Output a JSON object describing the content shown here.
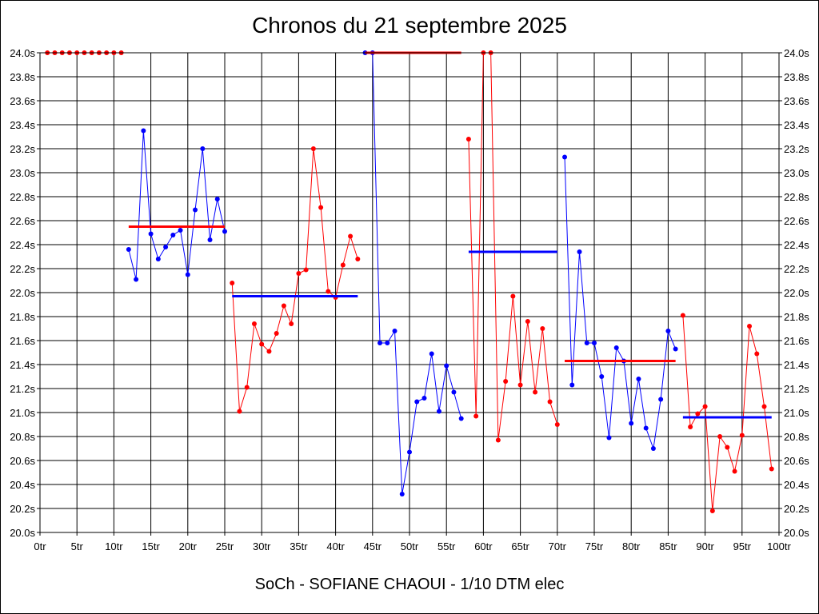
{
  "title": "Chronos du 21 septembre 2025",
  "footer": "SoCh - SOFIANE CHAOUI - 1/10 DTM elec",
  "colors": {
    "blue": "#0000ff",
    "red": "#ff0000",
    "grid": "#000000"
  },
  "chart_data": {
    "type": "line",
    "title": "Chronos du 21 septembre 2025",
    "xlabel": "",
    "ylabel": "",
    "xlim": [
      0,
      100
    ],
    "ylim": [
      20.0,
      24.0
    ],
    "grid": true,
    "legend": "none",
    "x_ticks": [
      "0tr",
      "5tr",
      "10tr",
      "15tr",
      "20tr",
      "25tr",
      "30tr",
      "35tr",
      "40tr",
      "45tr",
      "50tr",
      "55tr",
      "60tr",
      "65tr",
      "70tr",
      "75tr",
      "80tr",
      "85tr",
      "90tr",
      "95tr",
      "100tr"
    ],
    "y_ticks": [
      "20.0s",
      "20.2s",
      "20.4s",
      "20.6s",
      "20.8s",
      "21.0s",
      "21.2s",
      "21.4s",
      "21.6s",
      "21.8s",
      "22.0s",
      "22.2s",
      "22.4s",
      "22.6s",
      "22.8s",
      "23.0s",
      "23.2s",
      "23.4s",
      "23.6s",
      "23.8s",
      "24.0s"
    ],
    "series": [
      {
        "color": "#ff0000",
        "x": [
          1,
          2,
          3,
          4,
          5,
          6,
          7,
          8,
          9,
          10,
          11
        ],
        "y": [
          24.0,
          24.0,
          24.0,
          24.0,
          24.0,
          24.0,
          24.0,
          24.0,
          24.0,
          24.0,
          24.0
        ],
        "mean": null
      },
      {
        "color": "#0000ff",
        "x": [
          12,
          13,
          14,
          15,
          16,
          17,
          18,
          19,
          20,
          21,
          22,
          23,
          24,
          25
        ],
        "y": [
          22.36,
          22.11,
          23.35,
          22.49,
          22.28,
          22.38,
          22.48,
          22.52,
          22.15,
          22.69,
          23.2,
          22.44,
          22.78,
          22.51
        ],
        "mean": 22.55
      },
      {
        "color": "#ff0000",
        "x": [
          26,
          27,
          28,
          29,
          30,
          31,
          32,
          33,
          34,
          35,
          36,
          37,
          38,
          39,
          40,
          41,
          42,
          43
        ],
        "y": [
          22.08,
          21.01,
          21.21,
          21.74,
          21.57,
          21.51,
          21.66,
          21.89,
          21.74,
          22.16,
          22.19,
          23.2,
          22.71,
          22.01,
          21.96,
          22.23,
          22.47,
          22.28
        ],
        "mean": 21.97
      },
      {
        "color": "#0000ff",
        "x": [
          44,
          45,
          46,
          47,
          48,
          49,
          50,
          51,
          52,
          53,
          54,
          55,
          56,
          57
        ],
        "y": [
          24.0,
          24.0,
          21.58,
          21.58,
          21.68,
          20.32,
          20.67,
          21.09,
          21.12,
          21.49,
          21.01,
          21.39,
          21.17,
          20.95
        ],
        "mean": 24.0
      },
      {
        "color": "#ff0000",
        "x": [
          58,
          59,
          60,
          61,
          62,
          63,
          64,
          65,
          66,
          67,
          68,
          69,
          70
        ],
        "y": [
          23.28,
          20.97,
          24.0,
          24.0,
          20.77,
          21.26,
          21.97,
          21.23,
          21.76,
          21.17,
          21.7,
          21.09,
          20.9
        ],
        "mean": 22.34
      },
      {
        "color": "#0000ff",
        "x": [
          71,
          72,
          73,
          74,
          75,
          76,
          77,
          78,
          79,
          80,
          81,
          82,
          83,
          84,
          85,
          86
        ],
        "y": [
          23.13,
          21.23,
          22.34,
          21.58,
          21.58,
          21.3,
          20.79,
          21.54,
          21.43,
          20.91,
          21.28,
          20.87,
          20.7,
          21.11,
          21.68,
          21.53
        ],
        "mean": 21.43
      },
      {
        "color": "#ff0000",
        "x": [
          87,
          88,
          89,
          90,
          91,
          92,
          93,
          94,
          95,
          96,
          97,
          98,
          99
        ],
        "y": [
          21.81,
          20.88,
          20.99,
          21.05,
          20.18,
          20.8,
          20.71,
          20.51,
          20.81,
          21.72,
          21.49,
          21.05,
          20.53
        ],
        "mean": 20.96
      }
    ],
    "mean_lines": [
      {
        "color": "#0000ff",
        "x": [
          12,
          25
        ],
        "y": 22.55,
        "draw_color": "#ff0000"
      },
      {
        "color": "#ff0000",
        "x": [
          26,
          43
        ],
        "y": 21.97,
        "draw_color": "#0000ff"
      },
      {
        "color": "#0000ff",
        "x": [
          44,
          57
        ],
        "y": 24.0,
        "draw_color": "#ff0000"
      },
      {
        "color": "#ff0000",
        "x": [
          58,
          70
        ],
        "y": 22.34,
        "draw_color": "#0000ff"
      },
      {
        "color": "#0000ff",
        "x": [
          71,
          86
        ],
        "y": 21.43,
        "draw_color": "#ff0000"
      },
      {
        "color": "#ff0000",
        "x": [
          87,
          99
        ],
        "y": 20.96,
        "draw_color": "#0000ff"
      }
    ]
  }
}
